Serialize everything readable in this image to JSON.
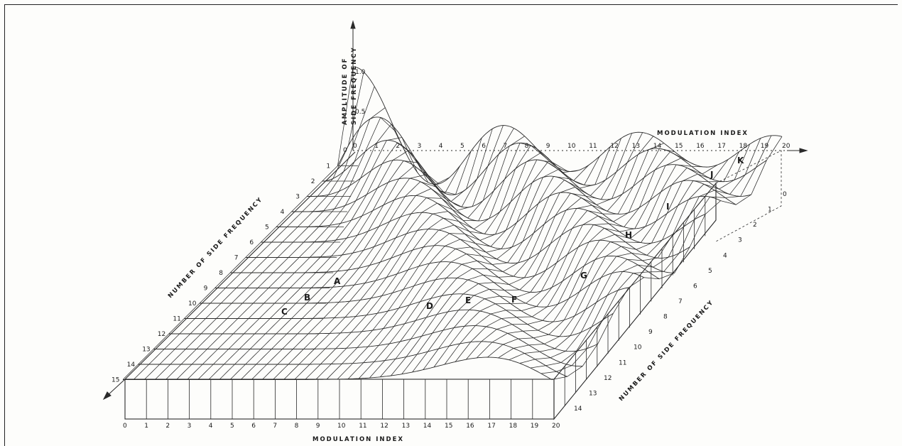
{
  "figure": {
    "axis_titles": {
      "modulation_index_bottom": "MODULATION    INDEX",
      "modulation_index_back": "MODULATION    INDEX",
      "amplitude_line1": "AMPLITUDE  OF",
      "amplitude_line2": "SIDE  FREQUENCY",
      "side_frequency_left": "NUMBER  OF  SIDE  FREQUENCY",
      "side_frequency_right": "NUMBER  OF  SIDE  FREQUENCY"
    },
    "modulation_index_ticks": [
      "0",
      "1",
      "2",
      "3",
      "4",
      "5",
      "6",
      "7",
      "8",
      "9",
      "10",
      "11",
      "12",
      "13",
      "14",
      "15",
      "16",
      "17",
      "18",
      "19",
      "20"
    ],
    "side_frequency_ticks_left": [
      "1",
      "2",
      "3",
      "4",
      "5",
      "6",
      "7",
      "8",
      "9",
      "10",
      "11",
      "12",
      "13",
      "14",
      "15"
    ],
    "side_frequency_ticks_right": [
      "0",
      "1",
      "2",
      "3",
      "4",
      "5",
      "6",
      "7",
      "8",
      "9",
      "10",
      "11",
      "12",
      "13",
      "14"
    ],
    "amplitude_ticks": [
      "1.0",
      "0.5",
      "0"
    ],
    "curve_labels": [
      "A",
      "B",
      "C",
      "D",
      "E",
      "F",
      "G",
      "H",
      "I",
      "J",
      "K"
    ],
    "colors": {
      "ink": "#2a2a2a",
      "paper": "#fdfdfb"
    }
  }
}
